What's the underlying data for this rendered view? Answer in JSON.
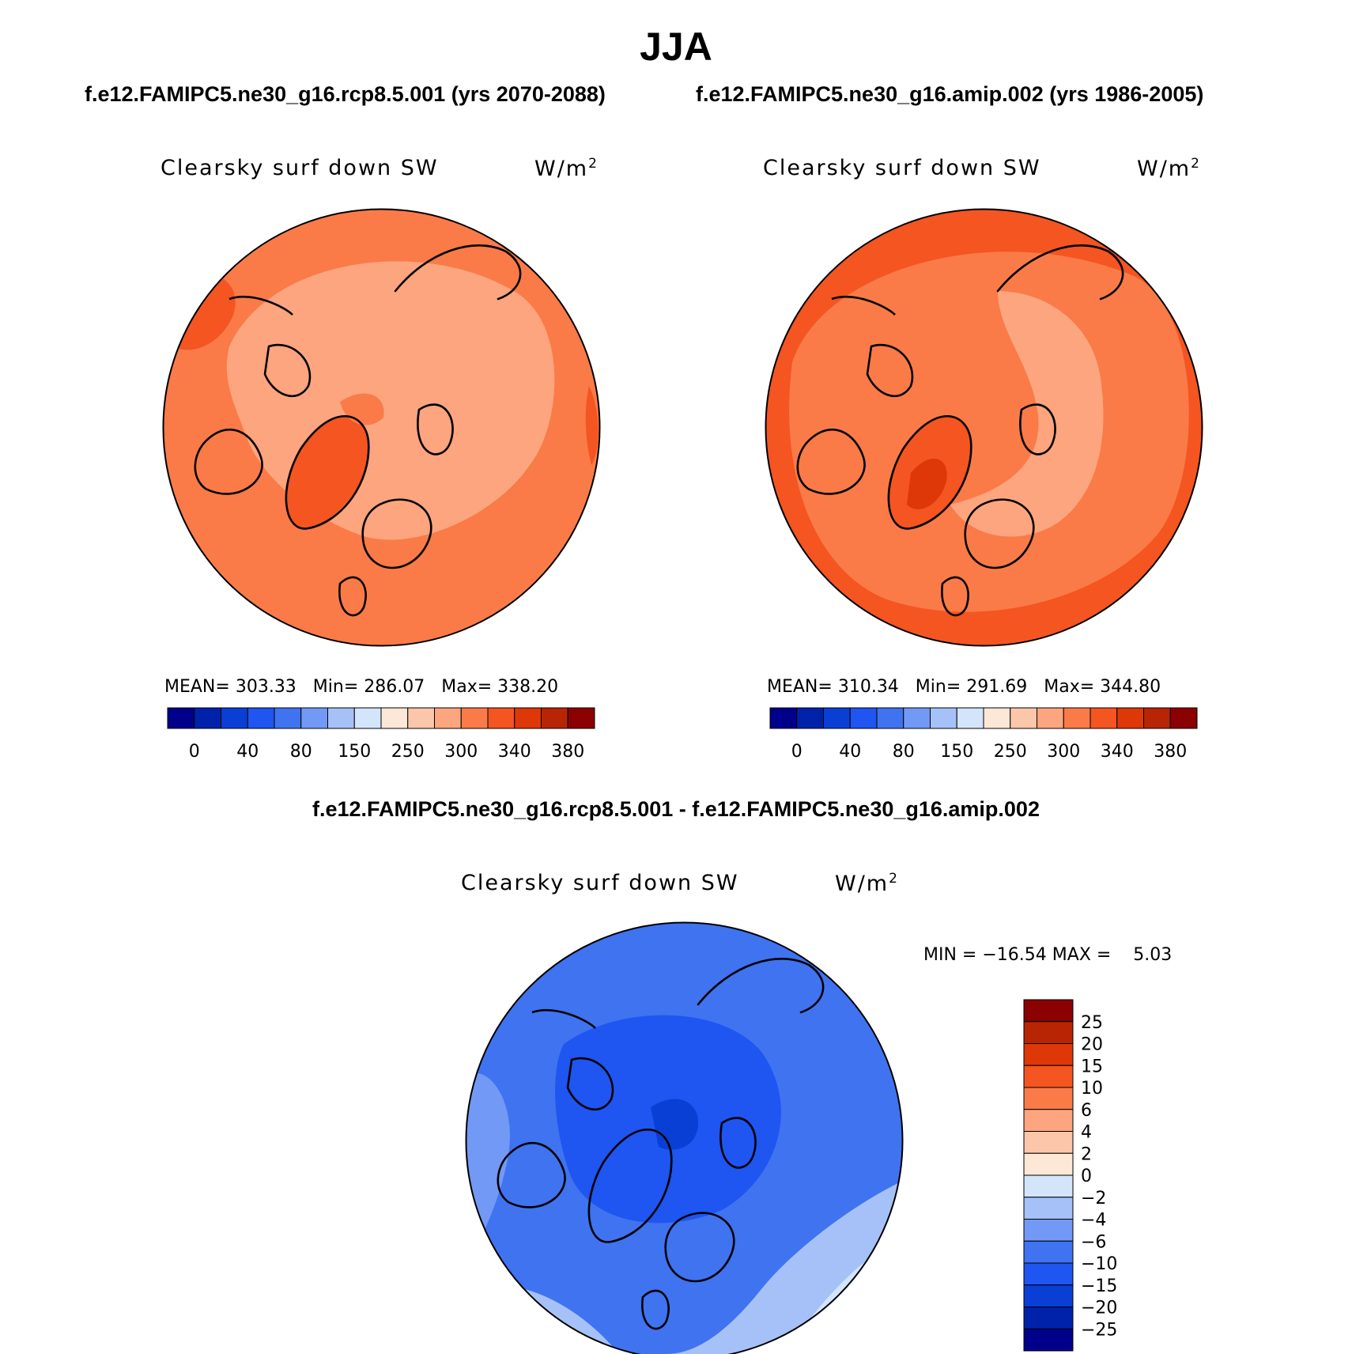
{
  "title": "JJA",
  "panels": [
    {
      "case": "f.e12.FAMIPC5.ne30_g16.rcp8.5.001 (yrs 2070-2088)",
      "variable": "Clearsky surf down SW",
      "units_base": "W/m",
      "units_exp": "2",
      "stats": {
        "mean_label": "MEAN=",
        "mean": "303.33",
        "min_label": "Min=",
        "min": "286.07",
        "max_label": "Max=",
        "max": "338.20"
      }
    },
    {
      "case": "f.e12.FAMIPC5.ne30_g16.amip.002 (yrs 1986-2005)",
      "variable": "Clearsky surf down SW",
      "units_base": "W/m",
      "units_exp": "2",
      "stats": {
        "mean_label": "MEAN=",
        "mean": "310.34",
        "min_label": "Min=",
        "min": "291.69",
        "max_label": "Max=",
        "max": "344.80"
      }
    }
  ],
  "abs_colorbar": {
    "colors": [
      "#00008b",
      "#0022aa",
      "#0a3fd6",
      "#1f55f0",
      "#3f73f0",
      "#7299f5",
      "#a6c1f8",
      "#d3e5fb",
      "#fde7d6",
      "#fcc6ab",
      "#fca57e",
      "#fa7b48",
      "#f45521",
      "#de3808",
      "#b82505",
      "#8b0000"
    ],
    "tick_labels": [
      "0",
      "40",
      "80",
      "150",
      "250",
      "300",
      "340",
      "380"
    ]
  },
  "difference": {
    "title": "f.e12.FAMIPC5.ne30_g16.rcp8.5.001 - f.e12.FAMIPC5.ne30_g16.amip.002",
    "variable": "Clearsky surf down SW",
    "units_base": "W/m",
    "units_exp": "2",
    "stats": {
      "min_label": "MIN =",
      "min": "−16.54",
      "max_label": "MAX =",
      "max": "5.03"
    },
    "colorbar": {
      "colors": [
        "#8b0000",
        "#b82505",
        "#de3808",
        "#f45521",
        "#fa7b48",
        "#fca57e",
        "#fcc6ab",
        "#fde7d6",
        "#d3e5fb",
        "#a6c1f8",
        "#7299f5",
        "#3f73f0",
        "#1f55f0",
        "#0a3fd6",
        "#0022aa",
        "#00008b"
      ],
      "tick_labels": [
        "25",
        "20",
        "15",
        "10",
        "6",
        "4",
        "2",
        "0",
        "−2",
        "−4",
        "−6",
        "−10",
        "−15",
        "−20",
        "−25"
      ]
    }
  },
  "colors": {
    "map_background_a": "#fa7b48",
    "map_background_b": "#fa7b48",
    "map_background_diff": "#3f73f0"
  }
}
